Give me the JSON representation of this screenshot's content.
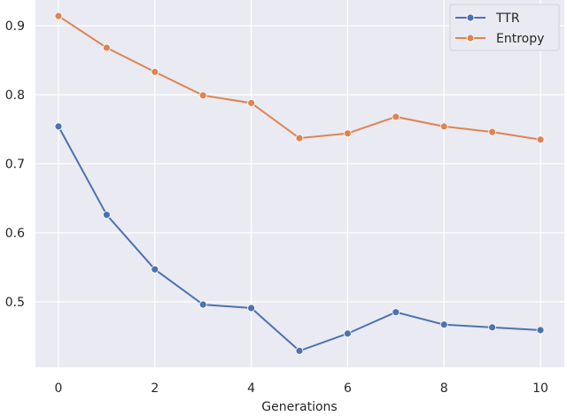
{
  "chart_data": {
    "type": "line",
    "title": "",
    "xlabel": "Generations",
    "ylabel": "",
    "xlim": [
      -0.5,
      10.5
    ],
    "ylim": [
      0.4,
      0.93
    ],
    "xticks": [
      0,
      2,
      4,
      6,
      8,
      10
    ],
    "yticks": [
      0.5,
      0.6,
      0.7,
      0.8,
      0.9
    ],
    "xtick_labels": [
      "0",
      "2",
      "4",
      "6",
      "8",
      "10"
    ],
    "ytick_labels": [
      "0.5",
      "0.6",
      "0.7",
      "0.8",
      "0.9"
    ],
    "grid": true,
    "legend_position": "top-right",
    "x": [
      0,
      1,
      2,
      3,
      4,
      5,
      6,
      7,
      8,
      9,
      10
    ],
    "series": [
      {
        "name": "TTR",
        "color": "#4c72b0",
        "values": [
          0.754,
          0.626,
          0.547,
          0.496,
          0.491,
          0.429,
          0.454,
          0.485,
          0.467,
          0.463,
          0.459
        ]
      },
      {
        "name": "Entropy",
        "color": "#dd8452",
        "values": [
          0.914,
          0.868,
          0.833,
          0.799,
          0.788,
          0.737,
          0.744,
          0.768,
          0.754,
          0.746,
          0.735
        ]
      }
    ],
    "background": "#eaeaf2"
  }
}
